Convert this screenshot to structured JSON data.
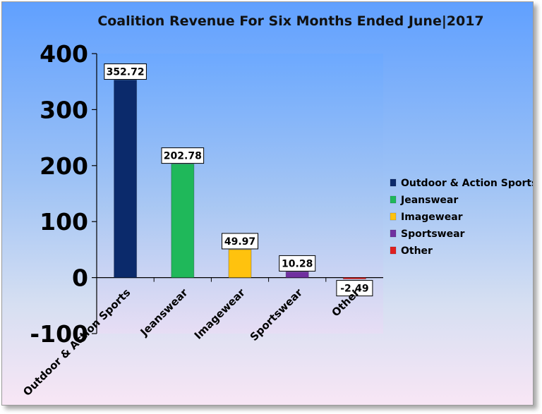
{
  "chart_data": {
    "type": "bar",
    "title": "Coalition Revenue For Six Months Ended June|2017",
    "categories": [
      "Outdoor & Action Sports",
      "Jeanswear",
      "Imagewear",
      "Sportswear",
      "Other"
    ],
    "values": [
      352.72,
      202.78,
      49.97,
      10.28,
      -2.49
    ],
    "data_labels": [
      "352.72",
      "202.78",
      "49.97",
      "10.28",
      "-2.49"
    ],
    "colors": [
      "#0b2a6b",
      "#1fb85a",
      "#ffc20e",
      "#7030a0",
      "#e02020"
    ],
    "ylim": [
      -100,
      400
    ],
    "yticks": [
      -100,
      0,
      100,
      200,
      300,
      400
    ],
    "xlabel": "",
    "ylabel": "",
    "legend": {
      "position": "right",
      "entries": [
        "Outdoor & Action Sports",
        "Jeanswear",
        "Imagewear",
        "Sportswear",
        "Other"
      ]
    },
    "grid": false
  }
}
